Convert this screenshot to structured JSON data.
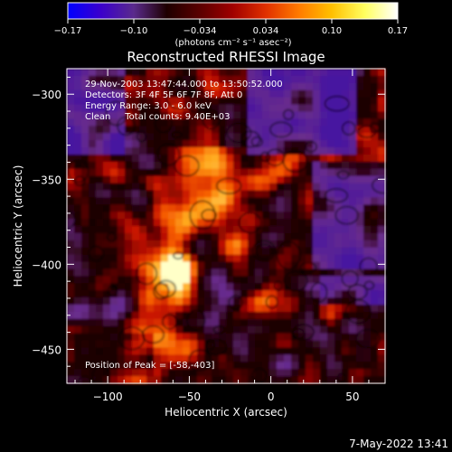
{
  "colorbar": {
    "ticks": [
      "-0.17",
      "-0.10",
      "-0.034",
      "0.034",
      "0.10",
      "0.17"
    ],
    "units_label": "(photons cm⁻² s⁻¹ asec⁻²)",
    "stops": [
      "#0000ff",
      "#3b00cc",
      "#5a2a8c",
      "#1e0000",
      "#5a0000",
      "#a00000",
      "#e03000",
      "#ff7a00",
      "#ffc000",
      "#ffff60",
      "#ffffff"
    ]
  },
  "plot": {
    "title": "Reconstructed RHESSI Image",
    "xlabel": "Heliocentric X (arcsec)",
    "ylabel": "Heliocentric Y (arcsec)",
    "xlim": [
      -125,
      70
    ],
    "ylim": [
      -470,
      -285
    ],
    "xticks": [
      -100,
      -50,
      0,
      50
    ],
    "yticks": [
      -300,
      -350,
      -400,
      -450
    ],
    "x_tick_labels": [
      "−100",
      "−50",
      "0",
      "50"
    ],
    "y_tick_labels": [
      "−300",
      "−350",
      "−400",
      "−450"
    ],
    "info_lines": [
      "29-Nov-2003 13:47:44.000 to 13:50:52.000",
      "Detectors: 3F 4F 5F 6F 7F 8F, Att 0",
      "Energy Range: 3.0 - 6.0 keV",
      "Clean     Total counts: 9.40E+03"
    ],
    "peak_label": "Position of Peak = [-58,-403]",
    "peak": [
      -58,
      -403
    ]
  },
  "footer": {
    "timestamp": "7-May-2022 13:41"
  }
}
